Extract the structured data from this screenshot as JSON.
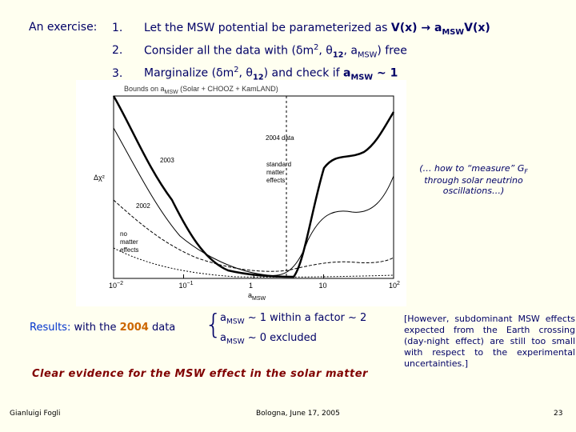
{
  "header": {
    "label": "An exercise:",
    "items": [
      {
        "num": "1.",
        "parts": [
          "Let the MSW potential be parameterized as ",
          "V(x) → a",
          "MSW",
          "V(x)"
        ]
      },
      {
        "num": "2.",
        "parts": [
          "Consider all the data with (δm",
          "2",
          ", θ",
          "12",
          ", a",
          "MSW",
          ") free"
        ]
      },
      {
        "num": "3.",
        "parts": [
          "Marginalize (δm",
          "2",
          ", θ",
          "12",
          ") and check if ",
          "a",
          "MSW",
          " ~ 1"
        ]
      }
    ]
  },
  "plot": {
    "title": [
      "Bounds on a",
      "MSW",
      " (Solar + CHOOZ + KamLAND)"
    ],
    "y_label": "Δχ²",
    "x_label": [
      "a",
      "MSW"
    ],
    "x_ticks": [
      [
        "10",
        "−2"
      ],
      [
        "10",
        "−1"
      ],
      [
        "1"
      ],
      [
        "10"
      ],
      [
        "10",
        "2"
      ]
    ],
    "labels": {
      "data2004": "2004 data",
      "y2003": "2003",
      "y2002": "2002",
      "standard": [
        "standard",
        "matter",
        "effects"
      ],
      "none": [
        "no",
        "matter",
        "effects"
      ]
    }
  },
  "side_note": [
    "(… how to “measure” G",
    "F",
    " through solar neutrino oscillations…)"
  ],
  "results": {
    "label": "Results:",
    "text": [
      "with the ",
      "2004",
      " data"
    ],
    "lines": [
      [
        "a",
        "MSW",
        " ~ 1 within a factor ~ 2"
      ],
      [
        "a",
        "MSW",
        " ~ 0 excluded"
      ]
    ]
  },
  "conclusion": "Clear evidence for the MSW effect in the solar matter",
  "note": "[However, subdominant MSW effects expected from the Earth crossing (day-night effect) are still too small with respect to the experimental uncertainties.]",
  "footer": {
    "author": "Gianluigi Fogli",
    "place_date": "Bologna, June 17, 2005",
    "page": "23"
  }
}
